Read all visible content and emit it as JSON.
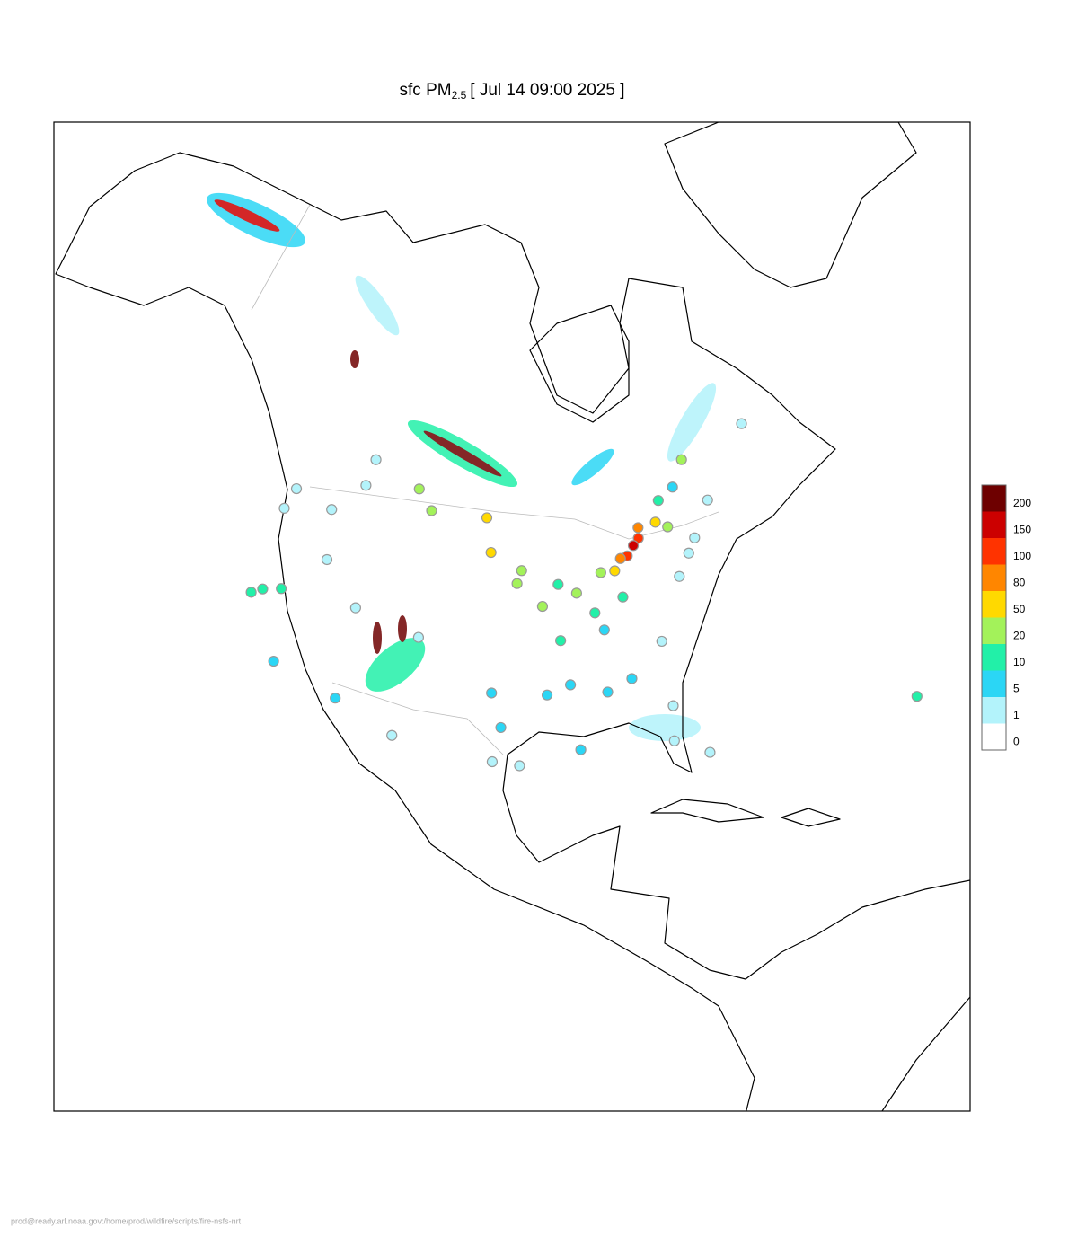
{
  "title": {
    "prefix": "sfc PM",
    "subscript": "2.5",
    "suffix": "[ Jul 14 09:00 2025 ]"
  },
  "legend": {
    "levels": [
      0,
      1,
      5,
      10,
      20,
      50,
      80,
      100,
      150,
      200
    ],
    "colors": [
      "#ffffff",
      "#b3f3fb",
      "#2bd6f5",
      "#22f0a8",
      "#a3f25a",
      "#ffd900",
      "#ff8600",
      "#ff3300",
      "#cc0000",
      "#6e0000"
    ]
  },
  "stations": {
    "lon": [
      -79.4,
      -80.2,
      -81.2,
      -82,
      -83,
      -84.5,
      -79,
      -77,
      -76,
      -75.7,
      -73.6,
      -71,
      -74,
      -75.2,
      -77,
      -80.8,
      -84.4,
      -81.7,
      -82.5,
      -80.2,
      -90,
      -87.6,
      -89.4,
      -93.3,
      -96.8,
      -97.1,
      -94,
      -91.5,
      -95.4,
      -97.7,
      -96.8,
      -97.5,
      -104.9,
      -111.9,
      -112,
      -118.2,
      -122.4,
      -121.5,
      -122.7,
      -122.3,
      -117.4,
      -113.5,
      -114,
      -106.6,
      -104.6,
      -116.2,
      -119.8,
      -90.2,
      -86.2,
      -83,
      -85.7,
      -92.3,
      -106.5,
      -86.8,
      -90.1,
      -66,
      -63.6,
      -71.2
    ],
    "lat": [
      43.7,
      43.4,
      42.9,
      43,
      42.3,
      42.7,
      44.5,
      44,
      43,
      45.4,
      45.5,
      42.4,
      40.7,
      40,
      38.9,
      35.2,
      33.7,
      30.3,
      27.9,
      25.8,
      35,
      41.9,
      43.1,
      45,
      46.9,
      49.9,
      44,
      41.7,
      29.8,
      30.3,
      32.8,
      35.5,
      39.7,
      40.8,
      33.4,
      34,
      37.8,
      38.6,
      45.5,
      47.6,
      47.7,
      53.5,
      51,
      52.1,
      50.4,
      43.6,
      39.5,
      38.6,
      39.8,
      40,
      38.2,
      34.7,
      31.8,
      33.5,
      30,
      18.4,
      44.6,
      46.8
    ],
    "values": [
      120,
      150,
      100,
      80,
      50,
      20,
      80,
      50,
      30,
      10,
      5,
      3,
      3,
      4,
      4,
      4,
      5,
      4,
      3,
      2,
      5,
      20,
      15,
      30,
      50,
      50,
      20,
      20,
      4,
      4,
      5,
      5,
      4,
      3,
      5,
      8,
      10,
      12,
      2,
      1,
      1,
      1,
      3,
      30,
      20,
      2,
      10,
      10,
      15,
      10,
      5,
      5,
      3,
      5,
      5,
      10,
      3,
      20
    ]
  },
  "footer": "prod@ready.arl.noaa.gov:/home/prod/wildfire/scripts/fire-nsfs-nrt"
}
